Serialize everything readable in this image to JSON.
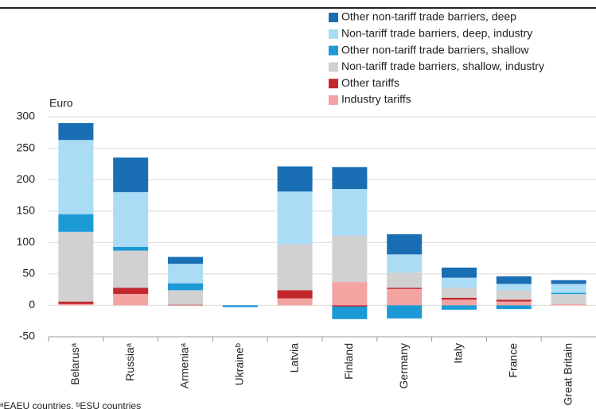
{
  "chart_data": {
    "type": "stacked_bar",
    "y_label": "Euro",
    "categories": [
      "Belarusᵃ",
      "Russiaᵃ",
      "Armeniaᵃ",
      "Ukraineᵇ",
      "Latvia",
      "Finland",
      "Germany",
      "Italy",
      "France",
      "Great Britain"
    ],
    "series": [
      {
        "name": "Industry tariffs",
        "color": "#f4a3a3",
        "values": [
          2,
          18,
          0,
          0,
          11,
          37,
          26,
          9,
          6,
          2
        ]
      },
      {
        "name": "Other tariffs",
        "color": "#c1272d",
        "values": [
          4,
          10,
          1,
          0,
          13,
          -2,
          2,
          3,
          3,
          0
        ]
      },
      {
        "name": "Non-tariff trade barriers, shallow, industry",
        "color": "#d1d1d1",
        "values": [
          111,
          59,
          23,
          0,
          73,
          74,
          24,
          16,
          15,
          16
        ]
      },
      {
        "name": "Other non-tariff trade barriers, shallow",
        "color": "#1b9ad6",
        "values": [
          28,
          6,
          11,
          -3,
          0,
          -20,
          -21,
          -7,
          -6,
          2
        ]
      },
      {
        "name": "Non-tariff trade barriers, deep, industry",
        "color": "#abdcf5",
        "values": [
          118,
          87,
          31,
          0,
          84,
          74,
          29,
          16,
          10,
          14
        ]
      },
      {
        "name": "Other non-tariff trade barriers, deep",
        "color": "#1a6eb4",
        "values": [
          27,
          55,
          11,
          0,
          40,
          35,
          32,
          16,
          12,
          6
        ]
      }
    ],
    "legend_order": [
      5,
      4,
      3,
      2,
      1,
      0
    ],
    "ylim": [
      -50,
      300
    ],
    "yticks": [
      -50,
      0,
      50,
      100,
      150,
      200,
      250,
      300
    ],
    "grid": true,
    "footnote": "ᵃEAEU countries, ᵇESU countries"
  }
}
